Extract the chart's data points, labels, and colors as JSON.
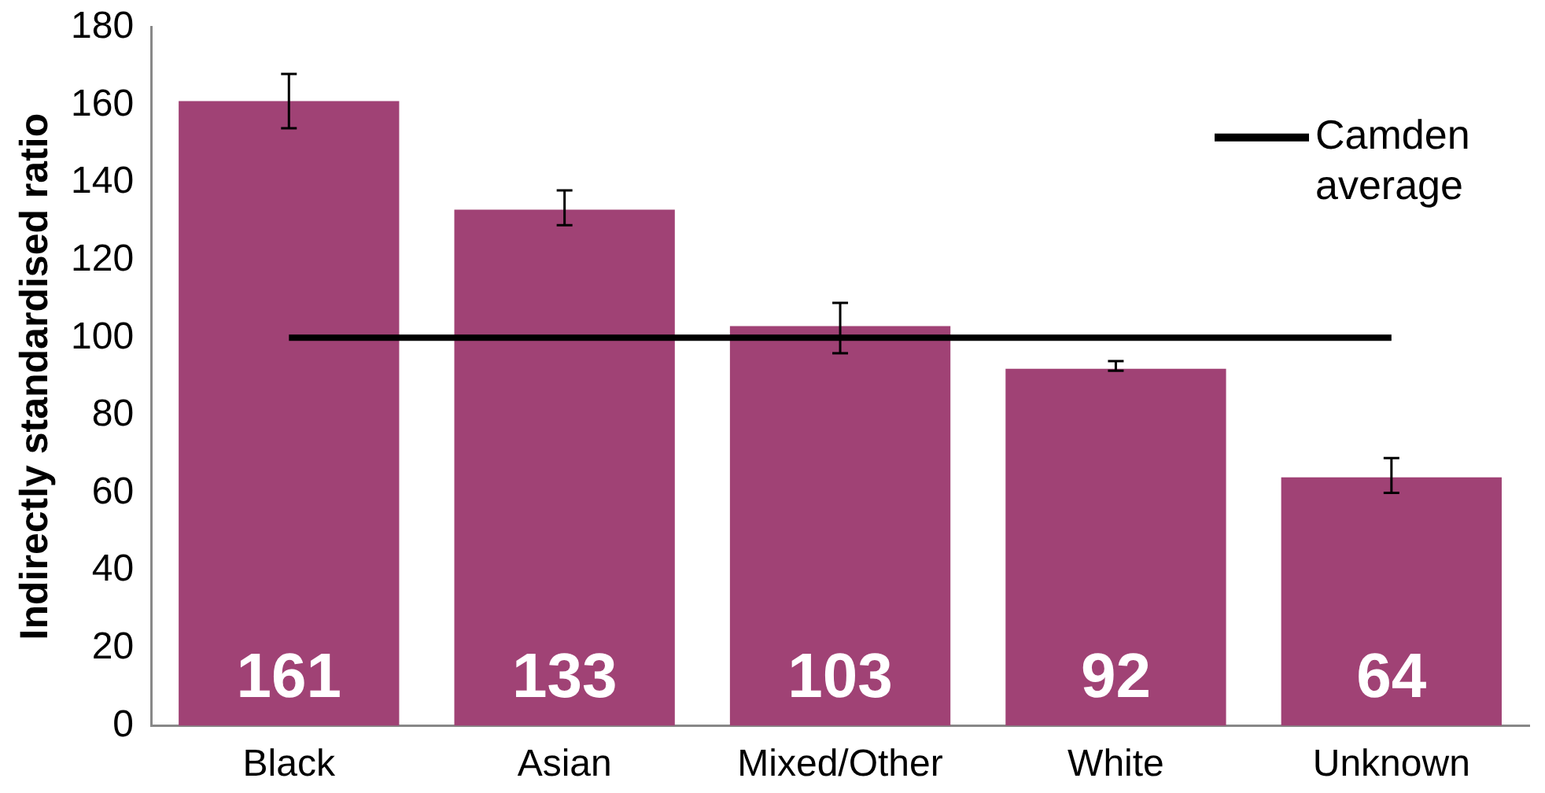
{
  "chart_data": {
    "type": "bar",
    "ylabel": "Indirectly standardised ratio",
    "categories": [
      "Black",
      "Asian",
      "Mixed/Other",
      "White",
      "Unknown"
    ],
    "series": [
      {
        "color": "#a04275",
        "values": [
          161,
          133,
          103,
          92,
          64
        ],
        "value_labels": [
          "161",
          "133",
          "103",
          "92",
          "64"
        ],
        "errors": [
          [
            154,
            168
          ],
          [
            129,
            138
          ],
          [
            96,
            109
          ],
          [
            91.5,
            94
          ],
          [
            60,
            69
          ]
        ]
      },
      {
        "type": "line",
        "name": "Camden average",
        "color": "#000000",
        "values": [
          100,
          100,
          100,
          100,
          100
        ]
      }
    ],
    "ylim": [
      0,
      180
    ],
    "yticks": [
      0,
      20,
      40,
      60,
      80,
      100,
      120,
      140,
      160,
      180
    ],
    "grid": false,
    "legend": "top right",
    "marker": "none"
  }
}
